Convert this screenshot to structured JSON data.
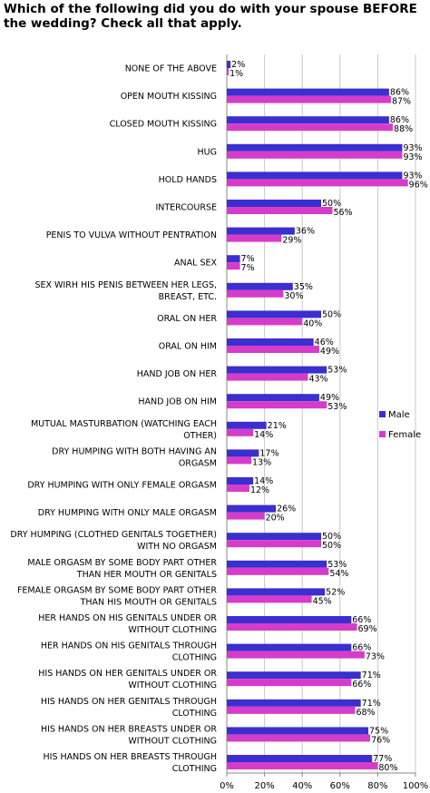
{
  "chart_data": {
    "type": "bar",
    "orientation": "horizontal",
    "title": "Which of the following did you do with your spouse BEFORE the wedding? Check all that apply.",
    "categories": [
      [
        "NONE OF THE ABOVE"
      ],
      [
        "OPEN MOUTH KISSING"
      ],
      [
        "CLOSED MOUTH KISSING"
      ],
      [
        "HUG"
      ],
      [
        "HOLD HANDS"
      ],
      [
        "INTERCOURSE"
      ],
      [
        "PENIS TO VULVA WITHOUT PENTRATION"
      ],
      [
        "ANAL SEX"
      ],
      [
        "SEX WIRH HIS PENIS BETWEEN HER LEGS,",
        "BREAST, ETC."
      ],
      [
        "ORAL ON HER"
      ],
      [
        "ORAL ON HIM"
      ],
      [
        "HAND JOB ON HER"
      ],
      [
        "HAND JOB ON HIM"
      ],
      [
        "MUTUAL MASTURBATION (WATCHING EACH",
        "OTHER)"
      ],
      [
        "DRY HUMPING WITH BOTH HAVING AN",
        "ORGASM"
      ],
      [
        "DRY HUMPING WITH ONLY FEMALE ORGASM"
      ],
      [
        "DRY HUMPING WITH ONLY MALE ORGASM"
      ],
      [
        "DRY HUMPING (CLOTHED GENITALS TOGETHER)",
        "WITH NO ORGASM"
      ],
      [
        "MALE ORGASM BY SOME BODY PART OTHER",
        "THAN HER MOUTH OR GENITALS"
      ],
      [
        "FEMALE ORGASM BY SOME BODY PART OTHER",
        "THAN HIS MOUTH OR GENITALS"
      ],
      [
        "HER HANDS ON HIS GENITALS UNDER OR",
        "WITHOUT CLOTHING"
      ],
      [
        "HER HANDS ON HIS GENITALS THROUGH",
        "CLOTHING"
      ],
      [
        "HIS HANDS ON HER GENITALS UNDER OR",
        "WITHOUT CLOTHING"
      ],
      [
        "HIS HANDS ON HER GENITALS THROUGH",
        "CLOTHING"
      ],
      [
        "HIS HANDS ON HER BREASTS UNDER OR",
        "WITHOUT CLOTHING"
      ],
      [
        "HIS HANDS ON HER BREASTS THROUGH",
        "CLOTHING"
      ]
    ],
    "series": [
      {
        "name": "Male",
        "color": "#3b2fd0",
        "values": [
          2,
          86,
          86,
          93,
          93,
          50,
          36,
          7,
          35,
          50,
          46,
          53,
          49,
          21,
          17,
          14,
          26,
          50,
          53,
          52,
          66,
          66,
          71,
          71,
          75,
          77
        ]
      },
      {
        "name": "Female",
        "color": "#d63cc9",
        "values": [
          1,
          87,
          88,
          93,
          96,
          56,
          29,
          7,
          30,
          40,
          49,
          43,
          53,
          14,
          13,
          12,
          20,
          50,
          54,
          45,
          69,
          73,
          66,
          68,
          76,
          80
        ]
      }
    ],
    "xlim": [
      0,
      100
    ],
    "x_ticks": [
      "0%",
      "20%",
      "40%",
      "60%",
      "80%",
      "100%"
    ],
    "grid": true,
    "legend_position": "right"
  }
}
